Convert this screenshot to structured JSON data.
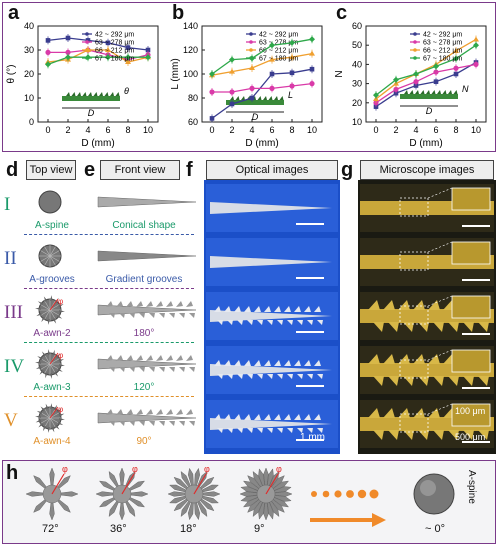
{
  "panels": {
    "a": "a",
    "b": "b",
    "c": "c",
    "d": "d",
    "e": "e",
    "f": "f",
    "g": "g",
    "h": "h"
  },
  "colors": {
    "s1": "#3a3d8f",
    "s2": "#d93aa8",
    "s3": "#f0a030",
    "s4": "#2ea84a",
    "frame": "#7a3a8a"
  },
  "chart_data": [
    {
      "type": "line",
      "xlabel": "D (mm)",
      "ylabel": "θ (°)",
      "xlim": [
        -1,
        11
      ],
      "ylim": [
        0,
        40
      ],
      "x": [
        0,
        2,
        4,
        6,
        8,
        10
      ],
      "yticks": [
        0,
        10,
        20,
        30,
        40
      ],
      "xticks": [
        0,
        2,
        4,
        6,
        8,
        10
      ],
      "series": [
        {
          "name": "42 ~ 292 μm",
          "values": [
            34,
            35,
            34,
            33,
            31,
            30
          ]
        },
        {
          "name": "63 ~ 278 μm",
          "values": [
            29,
            29,
            30,
            28,
            26,
            28
          ]
        },
        {
          "name": "66 ~ 212 μm",
          "values": [
            25,
            26,
            30,
            30,
            25,
            27
          ]
        },
        {
          "name": "67 ~ 180 μm",
          "values": [
            24,
            27,
            27,
            27,
            27,
            27
          ]
        }
      ],
      "inset_labels": {
        "theta": "θ",
        "d": "D"
      }
    },
    {
      "type": "line",
      "xlabel": "D (mm)",
      "ylabel": "L (mm)",
      "xlim": [
        -1,
        11
      ],
      "ylim": [
        60,
        140
      ],
      "x": [
        0,
        2,
        4,
        6,
        8,
        10
      ],
      "yticks": [
        60,
        80,
        100,
        120,
        140
      ],
      "xticks": [
        0,
        2,
        4,
        6,
        8,
        10
      ],
      "series": [
        {
          "name": "42 ~ 292 μm",
          "values": [
            63,
            75,
            80,
            100,
            101,
            104
          ]
        },
        {
          "name": "63 ~ 278 μm",
          "values": [
            85,
            85,
            88,
            88,
            90,
            92
          ]
        },
        {
          "name": "66 ~ 212 μm",
          "values": [
            99,
            102,
            105,
            112,
            114,
            117
          ]
        },
        {
          "name": "67 ~ 180 μm",
          "values": [
            100,
            112,
            113,
            124,
            126,
            129
          ]
        }
      ],
      "inset_labels": {
        "l": "L",
        "d": "D"
      }
    },
    {
      "type": "line",
      "xlabel": "D (mm)",
      "ylabel": "N",
      "xlim": [
        -1,
        11
      ],
      "ylim": [
        10,
        60
      ],
      "x": [
        0,
        2,
        4,
        6,
        8,
        10
      ],
      "yticks": [
        10,
        20,
        30,
        40,
        50,
        60
      ],
      "xticks": [
        0,
        2,
        4,
        6,
        8,
        10
      ],
      "series": [
        {
          "name": "42 ~ 292 μm",
          "values": [
            18,
            25,
            29,
            31,
            35,
            41
          ]
        },
        {
          "name": "63 ~ 278 μm",
          "values": [
            20,
            27,
            31,
            36,
            38,
            40
          ]
        },
        {
          "name": "66 ~ 212 μm",
          "values": [
            22,
            30,
            35,
            40,
            47,
            53
          ]
        },
        {
          "name": "67 ~ 180 μm",
          "values": [
            24,
            32,
            35,
            39,
            43,
            50
          ]
        }
      ],
      "inset_labels": {
        "n": "N",
        "d": "D"
      }
    }
  ],
  "columns": {
    "top_view": "Top view",
    "front_view": "Front view",
    "optical": "Optical images",
    "microscope": "Microscope images"
  },
  "rows": [
    {
      "roman": "I",
      "name": "A-spine",
      "front": "Conical shape",
      "color": "#1a9a6a"
    },
    {
      "roman": "II",
      "name": "A-grooves",
      "front": "Gradient grooves",
      "color": "#3a5aa8"
    },
    {
      "roman": "III",
      "name": "A-awn-2",
      "front": "180°",
      "color": "#7a3a8a"
    },
    {
      "roman": "IV",
      "name": "A-awn-3",
      "front": "120°",
      "color": "#1a9a6a"
    },
    {
      "roman": "V",
      "name": "A-awn-4",
      "front": "90°",
      "color": "#e0902a"
    }
  ],
  "top_view_phi": "φ",
  "scalebars": {
    "optical": "1 mm",
    "micro1": "100 μm",
    "micro2": "500 μm"
  },
  "h": {
    "angles": [
      "72°",
      "36°",
      "18°",
      "9°",
      "~ 0°"
    ],
    "phi": "φ",
    "spine_label": "A-spine"
  }
}
